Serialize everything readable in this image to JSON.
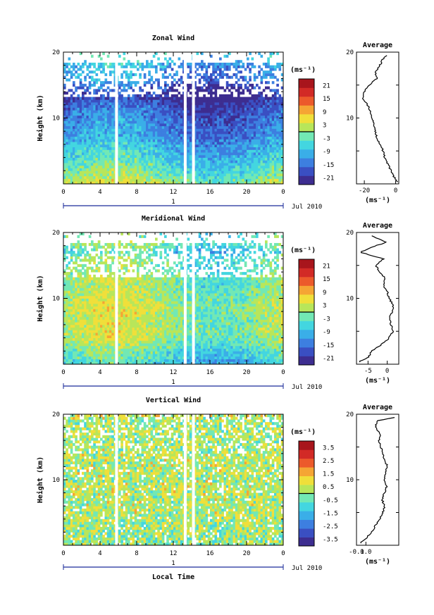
{
  "xlabel": "Local Time",
  "date_label": "Jul 2010",
  "day_label": "1",
  "ylabel": "Height (km)",
  "units": "(ms⁻¹)",
  "chart_data": [
    {
      "type": "heatmap",
      "title": "Zonal Wind",
      "xlabel": "",
      "ylabel": "Height (km)",
      "xlim": [
        0,
        24
      ],
      "ylim": [
        0,
        20
      ],
      "xticks": [
        "0",
        "4",
        "8",
        "12",
        "16",
        "20",
        "0"
      ],
      "yticks": [
        "10",
        "20"
      ],
      "colorbar_label": "(ms⁻¹)",
      "colorbar_range": [
        -24,
        24
      ],
      "colorbar_ticks": [
        "21",
        "15",
        "9",
        "3",
        "-3",
        "-9",
        "-15",
        "-21"
      ],
      "data_gaps_hours": [
        5.8,
        13.3,
        14.2
      ],
      "profile": {
        "title": "Average",
        "xlim": [
          -25,
          2
        ],
        "xticks": [
          "-20",
          "0"
        ],
        "xlabel": "(ms⁻¹)",
        "yticks": [
          "10",
          "20"
        ],
        "height_km": [
          0.5,
          1,
          2,
          3,
          4,
          5,
          6,
          7,
          8,
          9,
          10,
          11,
          12,
          13,
          14,
          15,
          16,
          17,
          18,
          19,
          19.5
        ],
        "value": [
          1,
          -1,
          -3,
          -5,
          -7,
          -8,
          -10,
          -12,
          -13,
          -14,
          -15,
          -16,
          -18,
          -21,
          -20,
          -17,
          -12,
          -13,
          -10,
          -8,
          -6
        ]
      }
    },
    {
      "type": "heatmap",
      "title": "Meridional Wind",
      "xlabel": "",
      "ylabel": "Height (km)",
      "xlim": [
        0,
        24
      ],
      "ylim": [
        0,
        20
      ],
      "xticks": [
        "0",
        "4",
        "8",
        "12",
        "16",
        "20",
        "0"
      ],
      "yticks": [
        "10",
        "20"
      ],
      "colorbar_label": "(ms⁻¹)",
      "colorbar_range": [
        -24,
        24
      ],
      "colorbar_ticks": [
        "21",
        "15",
        "9",
        "3",
        "-3",
        "-9",
        "-15",
        "-21"
      ],
      "data_gaps_hours": [
        5.8,
        13.3,
        14.2
      ],
      "profile": {
        "title": "Average",
        "xlim": [
          -8,
          3
        ],
        "xticks": [
          "-5",
          "0"
        ],
        "xlabel": "(ms⁻¹)",
        "yticks": [
          "10",
          "20"
        ],
        "height_km": [
          0.5,
          1,
          2,
          3,
          4,
          5,
          6,
          7,
          8,
          9,
          10,
          11,
          12,
          13,
          14,
          15,
          16,
          17,
          18,
          18.5,
          19,
          19.5
        ],
        "value": [
          -7,
          -5,
          -4,
          -1.5,
          0.5,
          1.5,
          1,
          0.5,
          1.5,
          1.5,
          0.5,
          0,
          -1,
          -0.5,
          -2,
          -3,
          -1,
          -7,
          -3,
          0,
          -2,
          -4
        ]
      }
    },
    {
      "type": "heatmap",
      "title": "Vertical Wind",
      "xlabel": "Local Time",
      "ylabel": "Height (km)",
      "xlim": [
        0,
        24
      ],
      "ylim": [
        0,
        20
      ],
      "xticks": [
        "0",
        "4",
        "8",
        "12",
        "16",
        "20",
        "0"
      ],
      "yticks": [
        "10",
        "20"
      ],
      "colorbar_label": "(ms⁻¹)",
      "colorbar_range": [
        -4,
        4
      ],
      "colorbar_ticks": [
        "3.5",
        "2.5",
        "1.5",
        "0.5",
        "-0.5",
        "-1.5",
        "-2.5",
        "-3.5"
      ],
      "data_gaps_hours": [
        5.8,
        13.3,
        14.2
      ],
      "profile": {
        "title": "Average",
        "xlim": [
          -0.1,
          0.35
        ],
        "xticks": [
          "-0.1",
          "0.0"
        ],
        "xlabel": "(ms⁻¹)",
        "yticks": [
          "10",
          "20"
        ],
        "height_km": [
          0.5,
          1,
          2,
          3,
          4,
          5,
          6,
          7,
          8,
          9,
          10,
          11,
          12,
          13,
          14,
          15,
          16,
          17,
          18,
          19,
          19.5
        ],
        "value": [
          -0.06,
          0.0,
          0.06,
          0.1,
          0.15,
          0.18,
          0.2,
          0.17,
          0.2,
          0.22,
          0.19,
          0.21,
          0.23,
          0.2,
          0.18,
          0.16,
          0.14,
          0.15,
          0.1,
          0.12,
          0.3
        ]
      }
    }
  ]
}
